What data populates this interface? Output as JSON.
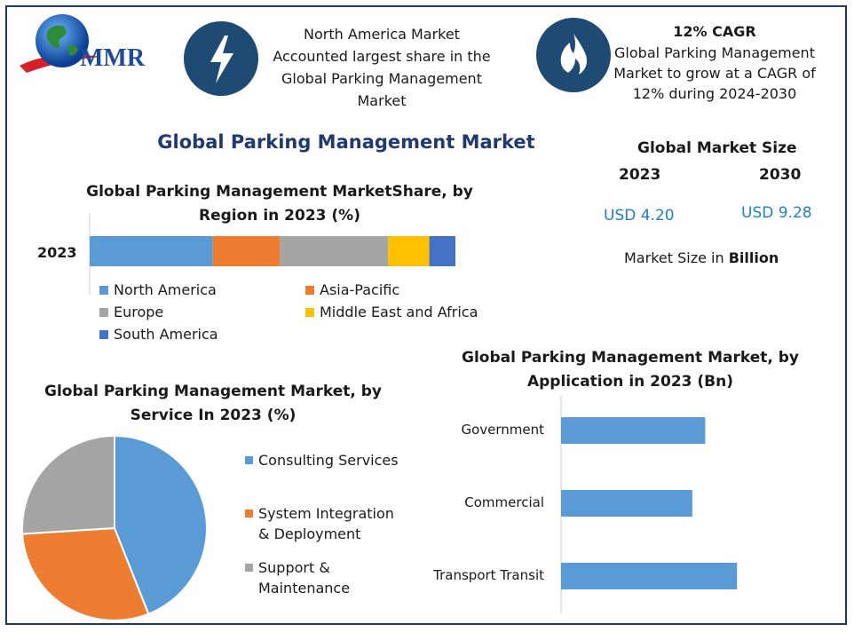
{
  "logo": {
    "text": "MMR"
  },
  "header": {
    "left_blurb": [
      "North America Market",
      "Accounted largest share in the",
      "Global Parking Management",
      "Market"
    ],
    "cagr_title": "12% CAGR",
    "cagr_blurb": [
      "Global Parking Management",
      "Market to grow at a CAGR of",
      "12% during 2024-2030"
    ]
  },
  "main_title": "Global Parking Management Market",
  "market_size": {
    "title": "Global Market Size",
    "year1": "2023",
    "year2": "2030",
    "value1": "USD 4.20",
    "value2": "USD 9.28",
    "note_prefix": "Market Size in ",
    "note_bold": "Billion"
  },
  "colors": {
    "north_america": "#5b9bd5",
    "asia_pacific": "#ed7d31",
    "europe": "#a5a5a5",
    "mea": "#ffc000",
    "south_america": "#4472c4",
    "navy": "#1e4a73",
    "title": "#1f3a6e"
  },
  "chart_data": [
    {
      "type": "bar",
      "orientation": "horizontal-stacked",
      "title": "Global Parking Management MarketShare, by Region in 2023 (%)",
      "categories": [
        "2023"
      ],
      "series": [
        {
          "name": "North America",
          "values": [
            33
          ],
          "color": "#5b9bd5"
        },
        {
          "name": "Asia-Pacific",
          "values": [
            18
          ],
          "color": "#ed7d31"
        },
        {
          "name": "Europe",
          "values": [
            29
          ],
          "color": "#a5a5a5"
        },
        {
          "name": "Middle East and Africa",
          "values": [
            11
          ],
          "color": "#ffc000"
        },
        {
          "name": "South America",
          "values": [
            7
          ],
          "color": "#4472c4"
        }
      ],
      "legend": "bottom"
    },
    {
      "type": "pie",
      "title": "Global Parking Management Market, by Service In 2023 (%)",
      "slices": [
        {
          "name": "Consulting Services",
          "value": 44,
          "color": "#5b9bd5"
        },
        {
          "name": "System Integration & Deployment",
          "value": 30,
          "color": "#ed7d31"
        },
        {
          "name": "Support & Maintenance",
          "value": 26,
          "color": "#a5a5a5"
        }
      ],
      "legend_lines": [
        [
          "Consulting Services"
        ],
        [
          "System Integration",
          "& Deployment"
        ],
        [
          "Support &",
          "Maintenance"
        ]
      ],
      "legend": "right"
    },
    {
      "type": "bar",
      "orientation": "horizontal",
      "title": "Global Parking Management Market, by Application in 2023 (Bn)",
      "categories": [
        "Government",
        "Commercial",
        "Transport Transit"
      ],
      "values": [
        1.45,
        1.32,
        1.77
      ],
      "xlim": [
        0,
        2.5
      ],
      "color": "#5b9bd5"
    }
  ]
}
